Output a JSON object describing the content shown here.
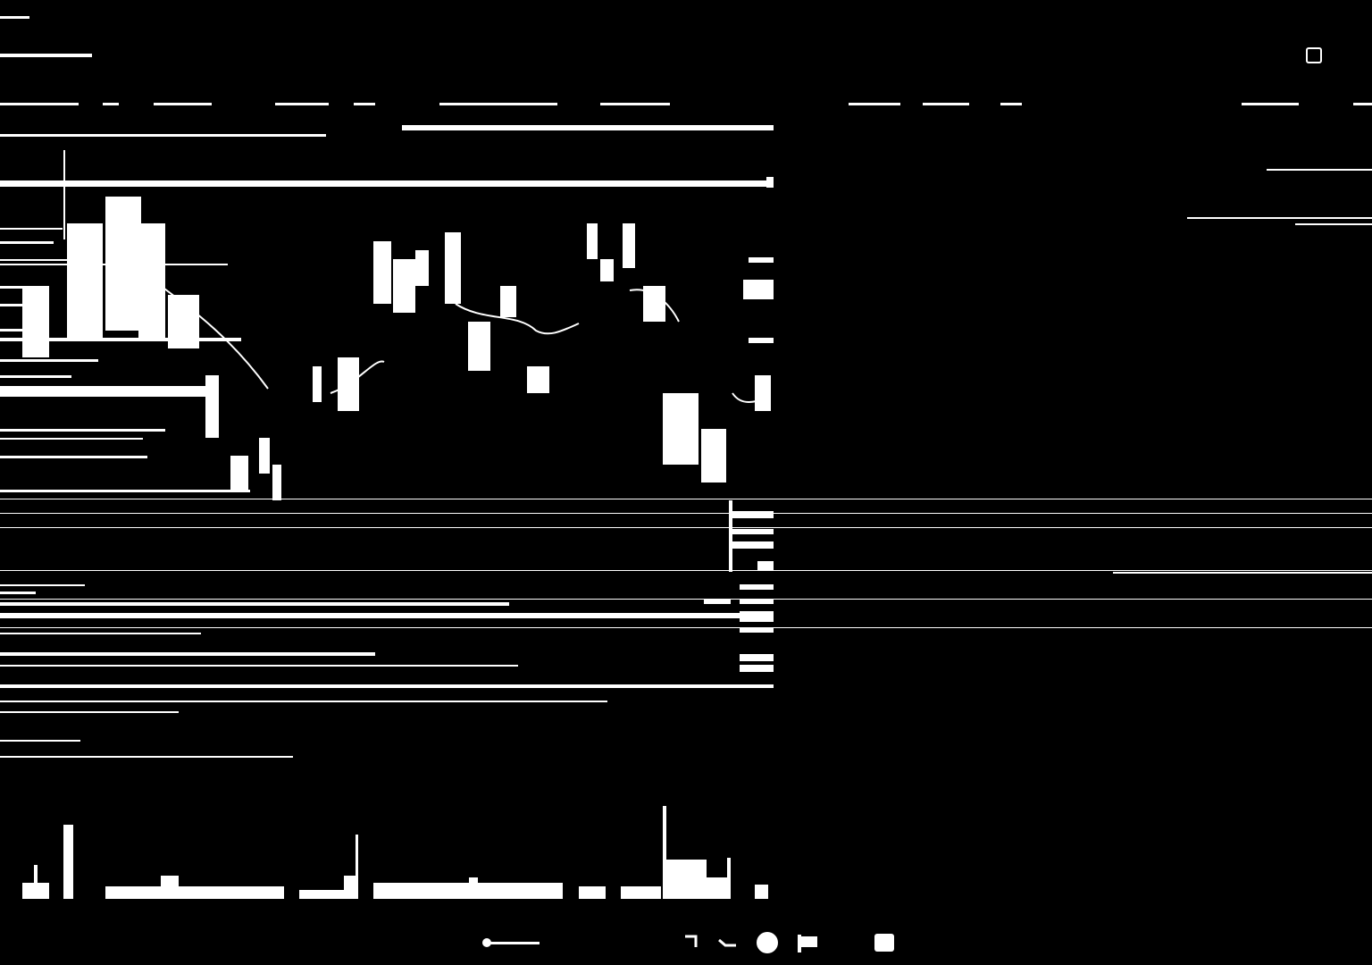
{
  "window": {
    "title": ""
  },
  "header": {
    "app_title": "",
    "tabs": [
      {
        "label": "",
        "active": false
      },
      {
        "label": "",
        "active": false
      },
      {
        "label": "",
        "active": false
      },
      {
        "label": "",
        "active": false
      },
      {
        "label": "",
        "active": false
      },
      {
        "label": "",
        "active": false
      },
      {
        "label": "",
        "active": false
      },
      {
        "label": "",
        "active": true
      },
      {
        "label": "",
        "active": false
      },
      {
        "label": "",
        "active": false
      },
      {
        "label": "",
        "active": false
      },
      {
        "label": "",
        "active": false
      }
    ]
  },
  "chart": {
    "ticker_line": "",
    "x_tick_labels": [
      "",
      "",
      "",
      ""
    ]
  },
  "toolbar": {
    "zoom_label": "",
    "icons": [
      "cursor-icon",
      "hand-icon",
      "circle-icon",
      "flag-icon",
      "square-icon"
    ]
  },
  "colors": {
    "background": "#000000",
    "foreground": "#ffffff"
  }
}
